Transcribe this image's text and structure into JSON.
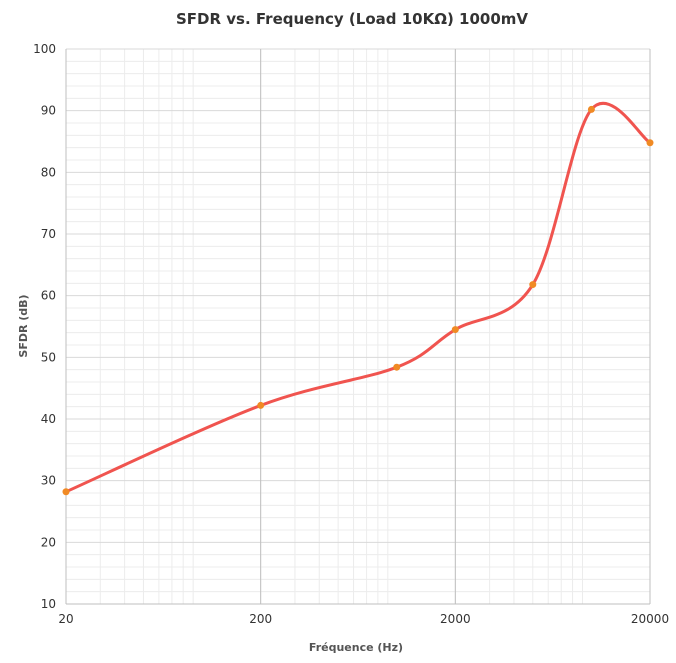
{
  "chart_data": {
    "type": "line",
    "title": "SFDR vs. Frequency (Load 10KΩ) 1000mV",
    "xlabel": "Fréquence (Hz)",
    "ylabel": "SFDR (dB)",
    "x_scale": "log",
    "xlim": [
      20,
      20000
    ],
    "ylim": [
      10,
      100
    ],
    "x_ticks": [
      "20",
      "200",
      "2000",
      "20000"
    ],
    "y_ticks": [
      "10",
      "20",
      "30",
      "40",
      "50",
      "60",
      "70",
      "80",
      "90",
      "100"
    ],
    "grid": true,
    "legend": "none",
    "series": [
      {
        "color": "#f0544f",
        "marker_color": "#f08a24",
        "x": [
          20,
          200,
          1000,
          2000,
          5000,
          10000,
          20000
        ],
        "y": [
          28.2,
          42.2,
          48.4,
          54.5,
          61.8,
          90.2,
          84.8
        ]
      }
    ]
  }
}
